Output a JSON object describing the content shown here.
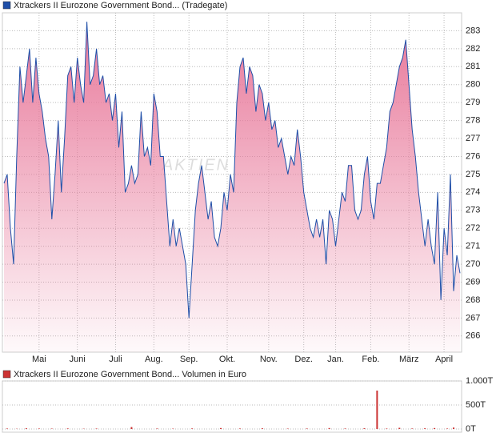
{
  "chart_data": [
    {
      "type": "area-line",
      "title": "Xtrackers II Eurozone Government Bond... (Tradegate)",
      "watermark": "AKTIEN",
      "line_color": "#1f4fa8",
      "fill_color": "#e8789a",
      "grid": true,
      "ylim": [
        265.1,
        284
      ],
      "yticks": [
        266,
        267,
        268,
        269,
        270,
        271,
        272,
        273,
        274,
        275,
        276,
        277,
        278,
        279,
        280,
        281,
        282,
        283
      ],
      "categories": [
        null,
        null,
        null,
        null,
        null,
        null,
        null,
        null,
        null,
        null,
        null,
        "Mai",
        null,
        null,
        null,
        null,
        null,
        null,
        null,
        null,
        null,
        null,
        null,
        "Juni",
        null,
        null,
        null,
        null,
        null,
        null,
        null,
        null,
        null,
        null,
        null,
        "Juli",
        null,
        null,
        null,
        null,
        null,
        null,
        null,
        null,
        null,
        null,
        null,
        "Aug.",
        null,
        null,
        null,
        null,
        null,
        null,
        null,
        null,
        null,
        null,
        "Sep.",
        null,
        null,
        null,
        null,
        null,
        null,
        null,
        null,
        null,
        null,
        null,
        "Okt.",
        null,
        null,
        null,
        null,
        null,
        null,
        null,
        null,
        null,
        null,
        null,
        null,
        "Nov.",
        null,
        null,
        null,
        null,
        null,
        null,
        null,
        null,
        null,
        null,
        "Dez.",
        null,
        null,
        null,
        null,
        null,
        null,
        null,
        null,
        null,
        "Jan.",
        null,
        null,
        null,
        null,
        null,
        null,
        null,
        null,
        null,
        null,
        "Feb.",
        null,
        null,
        null,
        null,
        null,
        null,
        null,
        null,
        null,
        null,
        null,
        "März",
        null,
        null,
        null,
        null,
        null,
        null,
        null,
        null,
        null,
        null,
        "April",
        null,
        null,
        null,
        null,
        null
      ],
      "values": [
        274.5,
        275,
        272,
        270,
        276,
        281,
        279,
        280.5,
        282,
        279,
        281.5,
        279.5,
        278.5,
        277,
        276,
        272.5,
        275,
        278,
        274,
        277,
        280.5,
        281,
        279,
        281.5,
        280,
        279,
        283.5,
        280,
        280.5,
        282,
        280,
        280.5,
        279,
        279.5,
        278,
        279.5,
        276.5,
        278.5,
        274,
        274.5,
        275.5,
        274.5,
        275,
        278.5,
        276,
        276.5,
        275.5,
        279.5,
        278.5,
        276,
        276,
        273.5,
        271,
        272.5,
        271,
        272,
        271,
        270,
        267,
        270,
        273,
        274.5,
        275.5,
        274,
        272.5,
        273.5,
        271.5,
        271,
        272,
        274,
        273,
        275,
        274,
        279,
        281,
        281.5,
        279.5,
        281,
        280.5,
        278.5,
        280,
        279.5,
        278,
        279,
        277.5,
        278,
        276.5,
        277,
        276,
        275,
        276,
        275.5,
        277.5,
        276,
        274,
        273,
        272,
        271.5,
        272.5,
        271.5,
        272.5,
        270,
        273,
        272.5,
        271,
        272.5,
        274,
        273.5,
        275.5,
        275.5,
        273,
        272.5,
        273,
        275,
        276,
        273.5,
        272.5,
        274.5,
        274.5,
        275.5,
        276.5,
        278.5,
        279,
        280,
        281,
        281.5,
        282.5,
        280,
        277.5,
        276,
        274,
        272.5,
        271,
        272.5,
        271,
        270,
        274,
        268,
        272,
        270.5,
        275,
        268.5,
        270.5,
        269.5
      ]
    },
    {
      "type": "bar",
      "title": "Xtrackers II Eurozone Government Bond... Volumen in Euro",
      "color": "#cc3333",
      "grid": true,
      "ylim": [
        0,
        1000
      ],
      "yticks": [
        {
          "value": 0,
          "label": "0T"
        },
        {
          "value": 500,
          "label": "500T"
        },
        {
          "value": 1000,
          "label": "1.000T"
        }
      ],
      "values": [
        0,
        10,
        0,
        0,
        5,
        0,
        0,
        15,
        0,
        0,
        0,
        10,
        0,
        0,
        0,
        8,
        0,
        0,
        0,
        0,
        12,
        0,
        0,
        0,
        0,
        6,
        0,
        0,
        0,
        10,
        0,
        0,
        0,
        0,
        0,
        0,
        0,
        0,
        0,
        0,
        40,
        0,
        0,
        0,
        0,
        0,
        0,
        0,
        10,
        0,
        0,
        0,
        0,
        8,
        0,
        0,
        0,
        0,
        0,
        12,
        0,
        0,
        0,
        0,
        0,
        0,
        0,
        0,
        20,
        0,
        0,
        0,
        0,
        0,
        10,
        0,
        0,
        0,
        0,
        0,
        0,
        15,
        0,
        0,
        0,
        0,
        0,
        0,
        0,
        8,
        0,
        0,
        0,
        0,
        0,
        10,
        0,
        0,
        0,
        0,
        0,
        0,
        20,
        0,
        0,
        0,
        0,
        10,
        0,
        0,
        0,
        0,
        0,
        15,
        0,
        0,
        0,
        800,
        0,
        0,
        10,
        0,
        0,
        0,
        25,
        0,
        0,
        0,
        10,
        0,
        0,
        0,
        15,
        0,
        0,
        20,
        0,
        0,
        0,
        10,
        0,
        30,
        0,
        0
      ]
    }
  ]
}
